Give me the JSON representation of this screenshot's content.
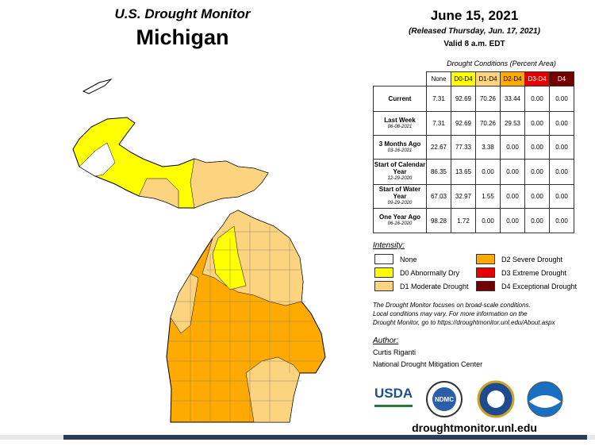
{
  "header": {
    "title": "U.S. Drought Monitor",
    "region": "Michigan",
    "date": "June 15, 2021",
    "released": "(Released Thursday, Jun. 17, 2021)",
    "valid": "Valid 8 a.m. EDT"
  },
  "table": {
    "caption": "Drought Conditions (Percent Area)",
    "columns": [
      {
        "label": "None",
        "color": "#ffffff",
        "text_color": "#000000"
      },
      {
        "label": "D0-D4",
        "color": "#ffff00",
        "text_color": "#000000"
      },
      {
        "label": "D1-D4",
        "color": "#fcd37f",
        "text_color": "#000000"
      },
      {
        "label": "D2-D4",
        "color": "#ffaa00",
        "text_color": "#000000"
      },
      {
        "label": "D3-D4",
        "color": "#e60000",
        "text_color": "#ffffff"
      },
      {
        "label": "D4",
        "color": "#730000",
        "text_color": "#ffffff"
      }
    ],
    "rows": [
      {
        "label": "Current",
        "cells": [
          "7.31",
          "92.69",
          "70.26",
          "33.44",
          "0.00",
          "0.00"
        ]
      },
      {
        "label": "Last Week",
        "date": "06-08-2021",
        "cells": [
          "7.31",
          "92.69",
          "70.26",
          "29.53",
          "0.00",
          "0.00"
        ]
      },
      {
        "label": "3 Months Ago",
        "date": "03-16-2021",
        "cells": [
          "22.67",
          "77.33",
          "3.38",
          "0.00",
          "0.00",
          "0.00"
        ]
      },
      {
        "label": "Start of Calendar Year",
        "date": "12-29-2020",
        "cells": [
          "86.35",
          "13.65",
          "0.00",
          "0.00",
          "0.00",
          "0.00"
        ]
      },
      {
        "label": "Start of Water Year",
        "date": "09-29-2020",
        "cells": [
          "67.03",
          "32.97",
          "1.55",
          "0.00",
          "0.00",
          "0.00"
        ]
      },
      {
        "label": "One Year Ago",
        "date": "06-16-2020",
        "cells": [
          "98.28",
          "1.72",
          "0.00",
          "0.00",
          "0.00",
          "0.00"
        ]
      }
    ]
  },
  "legend": {
    "title": "Intensity:",
    "items": [
      {
        "label": "None",
        "color": "#ffffff"
      },
      {
        "label": "D0 Abnormally Dry",
        "color": "#ffff00"
      },
      {
        "label": "D1 Moderate Drought",
        "color": "#fcd37f"
      },
      {
        "label": "D2 Severe Drought",
        "color": "#ffaa00"
      },
      {
        "label": "D3 Extreme Drought",
        "color": "#e60000"
      },
      {
        "label": "D4 Exceptional Drought",
        "color": "#730000"
      }
    ]
  },
  "note": [
    "The Drought Monitor focuses on broad-scale conditions.",
    "Local conditions may vary. For more information on the",
    "Drought Monitor, go to https://droughtmonitor.unl.edu/About.aspx"
  ],
  "author": {
    "title": "Author:",
    "name": "Curtis Riganti",
    "org": "National Drought Mitigation Center"
  },
  "logos": [
    "USDA",
    "NDMC"
  ],
  "footer": {
    "url": "droughtmonitor.unl.edu"
  }
}
